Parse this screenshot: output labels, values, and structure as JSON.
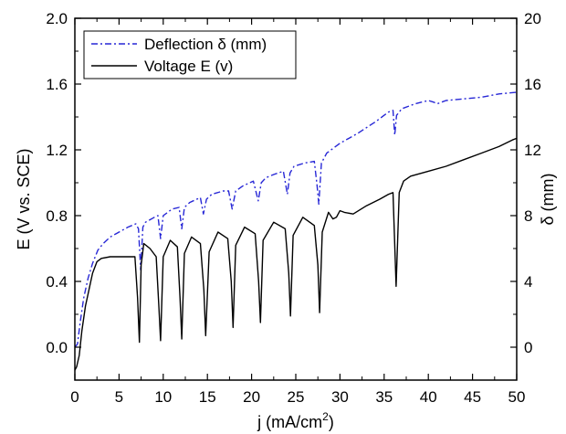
{
  "chart_data": {
    "type": "line",
    "xlabel": "j (mA/cm²)",
    "ylabel_left": "E (V vs. SCE)",
    "ylabel_right": "δ (mm)",
    "xlim": [
      0,
      50
    ],
    "ylim_left": [
      -0.2,
      2.0
    ],
    "ylim_right": [
      -2,
      20
    ],
    "x_ticks": [
      0,
      5,
      10,
      15,
      20,
      25,
      30,
      35,
      40,
      45,
      50
    ],
    "y_left_ticks": [
      0.0,
      0.4,
      0.8,
      1.2,
      1.6,
      2.0
    ],
    "y_left_tick_labels": [
      "0.0",
      "0.4",
      "0.8",
      "1.2",
      "1.6",
      "2.0"
    ],
    "y_right_ticks": [
      0,
      4,
      8,
      12,
      16,
      20
    ],
    "y_right_tick_labels": [
      "0",
      "4",
      "8",
      "12",
      "16",
      "20"
    ],
    "grid": false,
    "legend": {
      "placement": "top-left",
      "boxed": true
    },
    "series": [
      {
        "name": "Deflection δ (mm)",
        "axis": "right",
        "color": "#2727d6",
        "style": "dash-dot",
        "x": [
          0.0,
          0.3,
          0.6,
          1.0,
          1.5,
          2.0,
          2.6,
          3.2,
          4.0,
          5.0,
          6.0,
          6.9,
          7.2,
          7.45,
          7.7,
          8.0,
          9.0,
          9.4,
          9.7,
          10.0,
          11.0,
          11.8,
          12.1,
          12.4,
          13.0,
          14.2,
          14.55,
          14.9,
          15.5,
          16.8,
          17.4,
          17.8,
          18.2,
          19.0,
          20.2,
          20.75,
          21.1,
          21.6,
          22.5,
          23.6,
          24.05,
          24.35,
          24.8,
          26.0,
          27.1,
          27.4,
          27.6,
          27.9,
          28.5,
          30.0,
          32.0,
          34.0,
          35.5,
          36.0,
          36.2,
          36.4,
          37.0,
          38.5,
          40.0,
          40.6,
          41.0,
          42.0,
          44.0,
          46.0,
          48.0,
          50.0
        ],
        "y": [
          0.0,
          0.2,
          1.5,
          3.0,
          4.2,
          5.1,
          5.9,
          6.3,
          6.7,
          7.0,
          7.3,
          7.5,
          7.2,
          4.7,
          7.3,
          7.6,
          7.9,
          8.0,
          6.6,
          8.0,
          8.4,
          8.5,
          7.2,
          8.5,
          8.8,
          9.1,
          8.1,
          9.0,
          9.3,
          9.5,
          9.5,
          8.4,
          9.5,
          9.8,
          10.1,
          8.9,
          10.0,
          10.3,
          10.5,
          10.7,
          9.3,
          10.6,
          11.0,
          11.2,
          11.3,
          9.9,
          8.7,
          11.2,
          11.8,
          12.4,
          13.0,
          13.7,
          14.3,
          14.4,
          12.9,
          14.1,
          14.5,
          14.8,
          15.0,
          14.9,
          14.8,
          15.0,
          15.1,
          15.2,
          15.4,
          15.5
        ]
      },
      {
        "name": "Voltage E (v)",
        "axis": "left",
        "color": "#000000",
        "style": "solid",
        "x": [
          0.0,
          0.2,
          0.5,
          0.8,
          1.2,
          1.6,
          2.0,
          2.5,
          3.0,
          4.0,
          5.0,
          6.0,
          6.8,
          7.1,
          7.3,
          7.5,
          7.8,
          8.5,
          9.2,
          9.5,
          9.7,
          10.0,
          10.8,
          11.6,
          11.9,
          12.1,
          12.4,
          13.2,
          14.2,
          14.6,
          14.8,
          15.2,
          16.2,
          17.3,
          17.7,
          17.9,
          18.2,
          19.2,
          20.4,
          20.8,
          21.0,
          21.3,
          22.5,
          23.8,
          24.2,
          24.4,
          24.7,
          25.8,
          27.1,
          27.5,
          27.7,
          28.0,
          28.7,
          29.2,
          29.6,
          30.0,
          30.5,
          31.5,
          33.0,
          34.5,
          35.5,
          36.0,
          36.35,
          36.7,
          37.2,
          38.0,
          40.0,
          42.0,
          44.0,
          46.0,
          48.0,
          49.5,
          50.0
        ],
        "y": [
          -0.14,
          -0.12,
          -0.05,
          0.1,
          0.25,
          0.35,
          0.45,
          0.52,
          0.54,
          0.55,
          0.55,
          0.55,
          0.55,
          0.3,
          0.03,
          0.5,
          0.63,
          0.6,
          0.55,
          0.25,
          0.04,
          0.55,
          0.65,
          0.61,
          0.3,
          0.05,
          0.57,
          0.67,
          0.63,
          0.35,
          0.07,
          0.58,
          0.7,
          0.66,
          0.4,
          0.12,
          0.62,
          0.73,
          0.69,
          0.4,
          0.15,
          0.65,
          0.76,
          0.72,
          0.45,
          0.19,
          0.68,
          0.79,
          0.74,
          0.5,
          0.21,
          0.7,
          0.82,
          0.78,
          0.79,
          0.83,
          0.82,
          0.81,
          0.86,
          0.9,
          0.93,
          0.94,
          0.37,
          0.94,
          1.01,
          1.04,
          1.07,
          1.1,
          1.14,
          1.18,
          1.22,
          1.26,
          1.27
        ]
      }
    ]
  }
}
